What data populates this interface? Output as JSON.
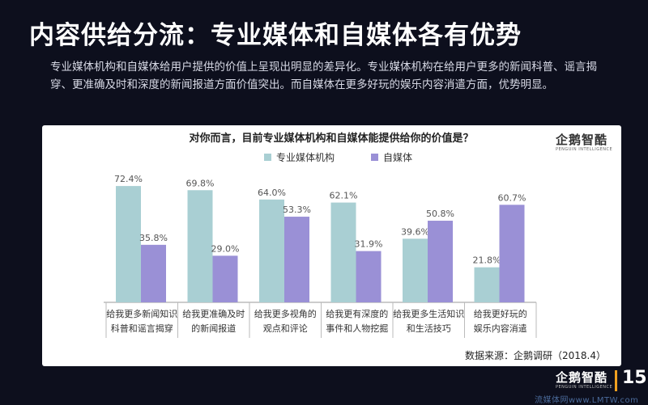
{
  "title": "内容供给分流：专业媒体和自媒体各有优势",
  "description": "专业媒体机构和自媒体给用户提供的价值上呈现出明显的差异化。专业媒体机构在给用户更多的新闻科普、谣言揭穿、更准确及时和深度的新闻报道方面价值突出。而自媒体在更多好玩的娱乐内容消遣方面，优势明显。",
  "logo": {
    "text": "企鹅智酷",
    "sub": "PENGUIN INTELLIGENCE"
  },
  "page_number": "15",
  "site_mark": "流媒体网www.LMTW.com",
  "colors": {
    "background": "#0d0f1d",
    "series_a": "#a9cfd3",
    "series_b": "#9a90d6"
  },
  "chart_data": {
    "type": "bar",
    "title": "对你而言，目前专业媒体机构和自媒体能提供给你的价值是？",
    "categories": [
      [
        "给我更多新闻知识",
        "科普和谣言揭穿"
      ],
      [
        "给我更准确及时",
        "的新闻报道"
      ],
      [
        "给我更多视角的",
        "观点和评论"
      ],
      [
        "给我更有深度的",
        "事件和人物挖掘"
      ],
      [
        "给我更多生活知识",
        "和生活技巧"
      ],
      [
        "给我更好玩的",
        "娱乐内容消遣"
      ]
    ],
    "series": [
      {
        "name": "专业媒体机构",
        "color": "#a9cfd3",
        "values": [
          72.4,
          69.8,
          64.0,
          62.1,
          39.6,
          21.8
        ]
      },
      {
        "name": "自媒体",
        "color": "#9a90d6",
        "values": [
          35.8,
          29.0,
          53.3,
          31.9,
          50.8,
          60.7
        ]
      }
    ],
    "value_suffix": "%",
    "ylim": [
      0,
      80
    ],
    "grid": false,
    "legend_position": "top",
    "source": "数据来源：企鹅调研（2018.4）"
  }
}
